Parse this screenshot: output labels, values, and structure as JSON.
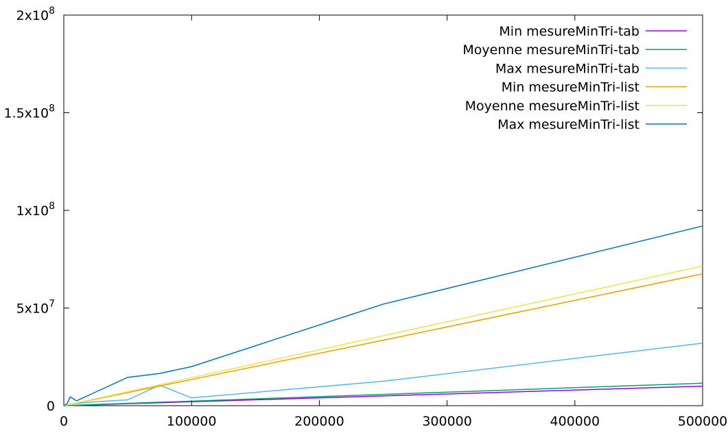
{
  "chart_data": {
    "type": "line",
    "title": "",
    "xlabel": "",
    "ylabel": "",
    "xlim": [
      0,
      500000
    ],
    "ylim": [
      0,
      200000000
    ],
    "grid": false,
    "legend_position": "top-right",
    "x_ticks": [
      {
        "value": 0,
        "label": "0"
      },
      {
        "value": 100000,
        "label": "100000"
      },
      {
        "value": 200000,
        "label": "200000"
      },
      {
        "value": 300000,
        "label": "300000"
      },
      {
        "value": 400000,
        "label": "400000"
      },
      {
        "value": 500000,
        "label": "500000"
      }
    ],
    "y_ticks": [
      {
        "value": 0,
        "base": "0",
        "exp": ""
      },
      {
        "value": 50000000,
        "base": "5x10",
        "exp": "7"
      },
      {
        "value": 100000000,
        "base": "1x10",
        "exp": "8"
      },
      {
        "value": 150000000,
        "base": "1.5x10",
        "exp": "8"
      },
      {
        "value": 200000000,
        "base": "2x10",
        "exp": "8"
      }
    ],
    "series": [
      {
        "name": "Min mesureMinTri-tab",
        "color": "#9400d3",
        "points": [
          [
            0,
            0
          ],
          [
            1000,
            20000
          ],
          [
            5000,
            100000
          ],
          [
            10000,
            200000
          ],
          [
            25000,
            500000
          ],
          [
            50000,
            1000000
          ],
          [
            75000,
            1500000
          ],
          [
            100000,
            2000000
          ],
          [
            250000,
            5000000
          ],
          [
            500000,
            10000000
          ]
        ]
      },
      {
        "name": "Moyenne mesureMinTri-tab",
        "color": "#009e73",
        "points": [
          [
            0,
            0
          ],
          [
            1000,
            25000
          ],
          [
            5000,
            120000
          ],
          [
            10000,
            250000
          ],
          [
            25000,
            600000
          ],
          [
            50000,
            1200000
          ],
          [
            75000,
            1800000
          ],
          [
            100000,
            2300000
          ],
          [
            250000,
            5800000
          ],
          [
            500000,
            11500000
          ]
        ]
      },
      {
        "name": "Max mesureMinTri-tab",
        "color": "#56b4e9",
        "points": [
          [
            0,
            0
          ],
          [
            1000,
            300000
          ],
          [
            5000,
            800000
          ],
          [
            10000,
            1200000
          ],
          [
            25000,
            2000000
          ],
          [
            50000,
            3000000
          ],
          [
            75000,
            10500000
          ],
          [
            100000,
            4000000
          ],
          [
            250000,
            12500000
          ],
          [
            500000,
            32000000
          ]
        ]
      },
      {
        "name": "Min mesureMinTri-list",
        "color": "#e69f00",
        "points": [
          [
            0,
            0
          ],
          [
            1000,
            130000
          ],
          [
            5000,
            670000
          ],
          [
            10000,
            1340000
          ],
          [
            25000,
            3350000
          ],
          [
            50000,
            6700000
          ],
          [
            75000,
            10050000
          ],
          [
            100000,
            13400000
          ],
          [
            250000,
            33500000
          ],
          [
            500000,
            67500000
          ]
        ]
      },
      {
        "name": "Moyenne mesureMinTri-list",
        "color": "#f0e442",
        "points": [
          [
            0,
            0
          ],
          [
            1000,
            143000
          ],
          [
            5000,
            715000
          ],
          [
            10000,
            1430000
          ],
          [
            25000,
            3580000
          ],
          [
            50000,
            7150000
          ],
          [
            75000,
            10700000
          ],
          [
            100000,
            14300000
          ],
          [
            250000,
            35800000
          ],
          [
            500000,
            71500000
          ]
        ]
      },
      {
        "name": "Max mesureMinTri-list",
        "color": "#0072b2",
        "points": [
          [
            0,
            0
          ],
          [
            2500,
            1000000
          ],
          [
            5000,
            4500000
          ],
          [
            10000,
            2500000
          ],
          [
            25000,
            7000000
          ],
          [
            50000,
            14500000
          ],
          [
            75000,
            16500000
          ],
          [
            100000,
            20000000
          ],
          [
            250000,
            52000000
          ],
          [
            500000,
            92000000
          ]
        ]
      }
    ]
  }
}
